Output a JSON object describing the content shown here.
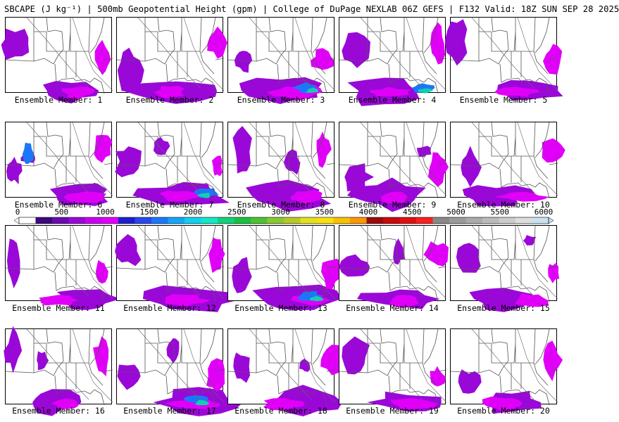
{
  "title": "SBCAPE (J kg⁻¹) | 500mb Geopotential Height (gpm) | College of DuPage NEXLAB 06Z GEFS | F132 Valid: 18Z SUN SEP 28 2025",
  "member_label_prefix": "Ensemble Member:",
  "members": [
    "1",
    "2",
    "3",
    "4",
    "5",
    "6",
    "7",
    "8",
    "9",
    "10",
    "11",
    "12",
    "13",
    "14",
    "15",
    "16",
    "17",
    "18",
    "19",
    "20"
  ],
  "colorbar": {
    "ticks": [
      "0",
      "500",
      "1000",
      "1500",
      "2000",
      "2500",
      "3000",
      "3500",
      "4000",
      "4500",
      "5000",
      "5500",
      "6000"
    ],
    "min": 0,
    "max": 6000,
    "step": 250,
    "colors": [
      "#ffffff",
      "#3c0a7a",
      "#6a0ab0",
      "#9a08d8",
      "#c800f0",
      "#e000f8",
      "#1e1ed0",
      "#2a46f0",
      "#1a78f8",
      "#12a6f8",
      "#10d0f0",
      "#10e8c8",
      "#12d07a",
      "#18c040",
      "#50c030",
      "#8ac830",
      "#b8c828",
      "#e0e020",
      "#f8e010",
      "#f8c000",
      "#f89800",
      "#9a0a0a",
      "#c80a0a",
      "#e01010",
      "#f82020",
      "#888888",
      "#9a9a9a",
      "#aaaaaa",
      "#bbbbbb",
      "#cccccc",
      "#dddddd",
      "#c8e0f0"
    ]
  },
  "colors": {
    "cape_low": "#9a08d8",
    "cape_mid": "#e000f8",
    "cape_high": "#1a78f8",
    "cape_extreme": "#10d0b0",
    "borders": "#555555"
  }
}
